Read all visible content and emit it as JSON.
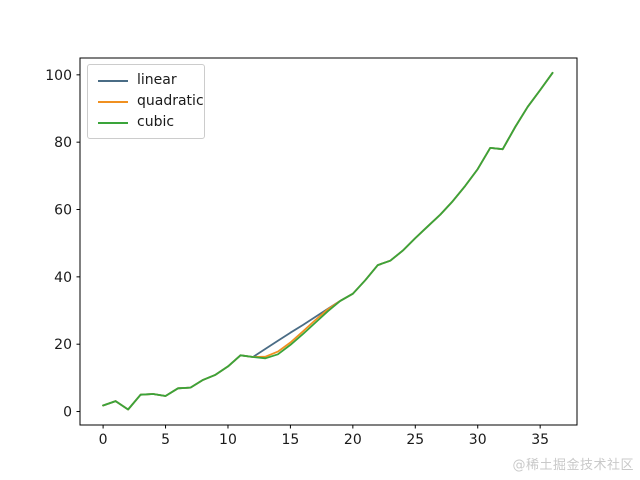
{
  "watermark": "@稀土掘金技术社区",
  "chart_data": {
    "type": "line",
    "title": "",
    "xlabel": "",
    "ylabel": "",
    "grid": false,
    "legend_position": "upper left",
    "x_ticks": [
      0,
      5,
      10,
      15,
      20,
      25,
      30,
      35
    ],
    "y_ticks": [
      0,
      20,
      40,
      60,
      80,
      100
    ],
    "xlim": [
      -1.85,
      37.95
    ],
    "ylim": [
      -4,
      105
    ],
    "x": [
      0,
      1,
      2,
      3,
      4,
      5,
      6,
      7,
      8,
      9,
      10,
      11,
      12,
      13,
      14,
      15,
      16,
      17,
      18,
      19,
      20,
      21,
      22,
      23,
      24,
      25,
      26,
      27,
      28,
      29,
      30,
      31,
      32,
      33,
      34,
      35,
      36
    ],
    "series": [
      {
        "name": "linear",
        "color": "#4a6c85",
        "values": [
          1.8,
          3.1,
          0.6,
          5.0,
          5.2,
          4.6,
          6.9,
          7.1,
          9.4,
          10.9,
          13.4,
          16.7,
          16.2,
          18.6,
          21.0,
          23.4,
          25.7,
          28.1,
          30.5,
          32.9,
          35.0,
          39.0,
          43.5,
          44.8,
          47.8,
          51.5,
          55.0,
          58.5,
          62.5,
          67.0,
          72.0,
          78.3,
          77.9,
          84.5,
          90.5,
          95.5,
          100.6
        ]
      },
      {
        "name": "quadratic",
        "color": "#f09020",
        "values": [
          1.8,
          3.1,
          0.6,
          5.0,
          5.2,
          4.6,
          6.9,
          7.1,
          9.4,
          10.9,
          13.4,
          16.7,
          16.2,
          16.3,
          17.8,
          20.5,
          23.8,
          27.2,
          30.4,
          32.9,
          35.0,
          39.0,
          43.5,
          44.8,
          47.8,
          51.5,
          55.0,
          58.5,
          62.5,
          67.0,
          72.0,
          78.3,
          77.9,
          84.5,
          90.5,
          95.5,
          100.6
        ]
      },
      {
        "name": "cubic",
        "color": "#3aa43a",
        "values": [
          1.8,
          3.1,
          0.6,
          5.0,
          5.2,
          4.6,
          6.9,
          7.1,
          9.4,
          10.9,
          13.4,
          16.7,
          16.2,
          15.8,
          17.0,
          19.8,
          23.0,
          26.4,
          29.8,
          32.9,
          35.0,
          39.0,
          43.5,
          44.8,
          47.8,
          51.5,
          55.0,
          58.5,
          62.5,
          67.0,
          72.0,
          78.3,
          77.9,
          84.5,
          90.5,
          95.5,
          100.6
        ]
      }
    ],
    "axis_color": "#000000",
    "tick_label_color": "#1a1a1a",
    "tick_font_size": 14
  }
}
